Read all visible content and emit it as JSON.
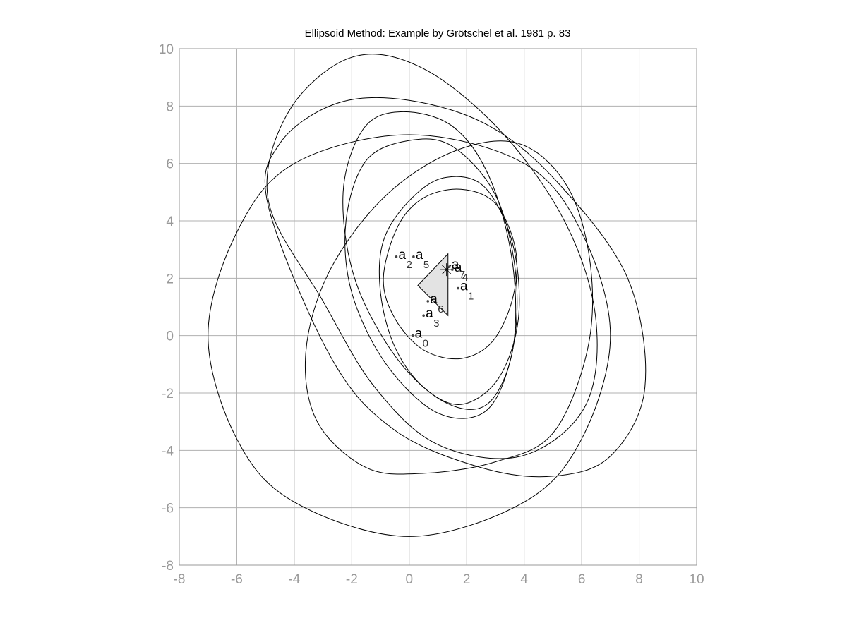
{
  "chart_data": {
    "type": "line",
    "title": "Ellipsoid Method: Example by Grötschel et al. 1981 p. 83",
    "xlabel": "",
    "ylabel": "",
    "xlim": [
      -8,
      10
    ],
    "ylim": [
      -8,
      10
    ],
    "xticks": [
      -8,
      -6,
      -4,
      -2,
      0,
      2,
      4,
      6,
      8,
      10
    ],
    "yticks": [
      -8,
      -6,
      -4,
      -2,
      0,
      2,
      4,
      6,
      8,
      10
    ],
    "grid": true,
    "colors": {
      "grid": "#b0b0b0",
      "axes": "#999999",
      "ellipse": "#000000",
      "polytope_fill": "#e3e3e3",
      "point": "#444444"
    },
    "polytope": [
      [
        0.3,
        1.75
      ],
      [
        1.35,
        2.85
      ],
      [
        1.35,
        0.7
      ]
    ],
    "center_marker": [
      1.3,
      2.3
    ],
    "points": [
      {
        "label": "a",
        "sub": "0",
        "x": 0.12,
        "y": 0.0
      },
      {
        "label": "a",
        "sub": "1",
        "x": 1.7,
        "y": 1.65
      },
      {
        "label": "a",
        "sub": "2",
        "x": -0.45,
        "y": 2.75
      },
      {
        "label": "a",
        "sub": "3",
        "x": 0.5,
        "y": 0.7
      },
      {
        "label": "a",
        "sub": "4",
        "x": 1.5,
        "y": 2.3
      },
      {
        "label": "a",
        "sub": "5",
        "x": 0.15,
        "y": 2.75
      },
      {
        "label": "a",
        "sub": "6",
        "x": 0.65,
        "y": 1.2
      },
      {
        "label": "a",
        "sub": "7",
        "x": 1.4,
        "y": 2.4
      }
    ],
    "ellipses": [
      {
        "center": [
          0,
          0
        ],
        "boundary": [
          [
            -7.0,
            0.0
          ],
          [
            -6.0,
            3.6
          ],
          [
            -4.0,
            6.0
          ],
          [
            0.0,
            7.0
          ],
          [
            4.0,
            6.0
          ],
          [
            6.0,
            3.6
          ],
          [
            7.0,
            0.0
          ],
          [
            6.0,
            -3.6
          ],
          [
            4.0,
            -5.8
          ],
          [
            0.0,
            -7.0
          ],
          [
            -4.0,
            -5.8
          ],
          [
            -6.0,
            -3.6
          ],
          [
            -7.0,
            0.0
          ]
        ]
      },
      {
        "center": [
          1.5,
          2.4
        ],
        "boundary": [
          [
            -4.9,
            4.7
          ],
          [
            -4.2,
            7.8
          ],
          [
            -2.0,
            9.7
          ],
          [
            0.5,
            9.3
          ],
          [
            3.3,
            7.0
          ],
          [
            5.5,
            3.8
          ],
          [
            6.5,
            0.5
          ],
          [
            6.1,
            -2.5
          ],
          [
            3.9,
            -4.2
          ],
          [
            1.0,
            -3.8
          ],
          [
            -1.2,
            -1.8
          ],
          [
            -3.0,
            1.2
          ],
          [
            -4.9,
            4.7
          ]
        ]
      },
      {
        "center": [
          1.6,
          1.2
        ],
        "boundary": [
          [
            -4.9,
            4.5
          ],
          [
            -4.5,
            6.7
          ],
          [
            -2.5,
            8.1
          ],
          [
            0.0,
            8.2
          ],
          [
            2.8,
            7.3
          ],
          [
            5.2,
            5.3
          ],
          [
            7.6,
            2.0
          ],
          [
            8.2,
            -1.8
          ],
          [
            7.0,
            -4.2
          ],
          [
            5.0,
            -4.9
          ],
          [
            2.5,
            -4.6
          ],
          [
            -0.5,
            -3.3
          ],
          [
            -2.7,
            -0.8
          ],
          [
            -4.9,
            4.5
          ]
        ]
      },
      {
        "center": [
          1.7,
          1.0
        ],
        "boundary": [
          [
            -3.6,
            -0.6
          ],
          [
            -2.8,
            2.2
          ],
          [
            -0.9,
            4.8
          ],
          [
            1.5,
            6.4
          ],
          [
            3.8,
            6.7
          ],
          [
            5.5,
            5.2
          ],
          [
            6.3,
            2.5
          ],
          [
            6.2,
            -0.5
          ],
          [
            5.0,
            -3.4
          ],
          [
            3.0,
            -4.4
          ],
          [
            0.5,
            -4.8
          ],
          [
            -1.5,
            -4.6
          ],
          [
            -3.2,
            -3.0
          ],
          [
            -3.6,
            -0.6
          ]
        ]
      },
      {
        "center": [
          1.1,
          2.5
        ],
        "boundary": [
          [
            -2.3,
            5.0
          ],
          [
            -1.9,
            2.0
          ],
          [
            -0.5,
            -0.7
          ],
          [
            1.2,
            -2.3
          ],
          [
            2.7,
            -2.4
          ],
          [
            3.6,
            -0.5
          ],
          [
            3.6,
            2.5
          ],
          [
            2.8,
            5.5
          ],
          [
            1.5,
            7.3
          ],
          [
            -0.3,
            7.8
          ],
          [
            -1.6,
            7.2
          ],
          [
            -2.3,
            5.0
          ]
        ]
      },
      {
        "center": [
          1.3,
          1.7
        ],
        "boundary": [
          [
            -2.2,
            4.0
          ],
          [
            -2.0,
            1.5
          ],
          [
            -0.8,
            -1.0
          ],
          [
            1.0,
            -2.7
          ],
          [
            2.7,
            -2.6
          ],
          [
            3.6,
            -0.5
          ],
          [
            3.7,
            2.2
          ],
          [
            3.0,
            4.9
          ],
          [
            1.5,
            6.6
          ],
          [
            0.0,
            6.8
          ],
          [
            -1.5,
            6.1
          ],
          [
            -2.2,
            4.0
          ]
        ]
      },
      {
        "center": [
          1.7,
          2.3
        ],
        "boundary": [
          [
            -1.0,
            1.5
          ],
          [
            -0.5,
            -0.4
          ],
          [
            0.5,
            -1.8
          ],
          [
            1.8,
            -2.4
          ],
          [
            3.1,
            -1.5
          ],
          [
            3.8,
            0.6
          ],
          [
            3.6,
            3.2
          ],
          [
            2.6,
            5.2
          ],
          [
            1.2,
            5.5
          ],
          [
            0.0,
            4.7
          ],
          [
            -0.9,
            3.3
          ],
          [
            -1.0,
            1.5
          ]
        ]
      },
      {
        "center": [
          1.9,
          2.1
        ],
        "boundary": [
          [
            -0.9,
            2.0
          ],
          [
            -0.5,
            0.6
          ],
          [
            0.5,
            -0.5
          ],
          [
            1.8,
            -0.8
          ],
          [
            2.9,
            -0.2
          ],
          [
            3.6,
            1.3
          ],
          [
            3.7,
            3.0
          ],
          [
            3.0,
            4.6
          ],
          [
            1.8,
            5.1
          ],
          [
            0.5,
            4.8
          ],
          [
            -0.4,
            3.8
          ],
          [
            -0.9,
            2.0
          ]
        ]
      }
    ]
  }
}
